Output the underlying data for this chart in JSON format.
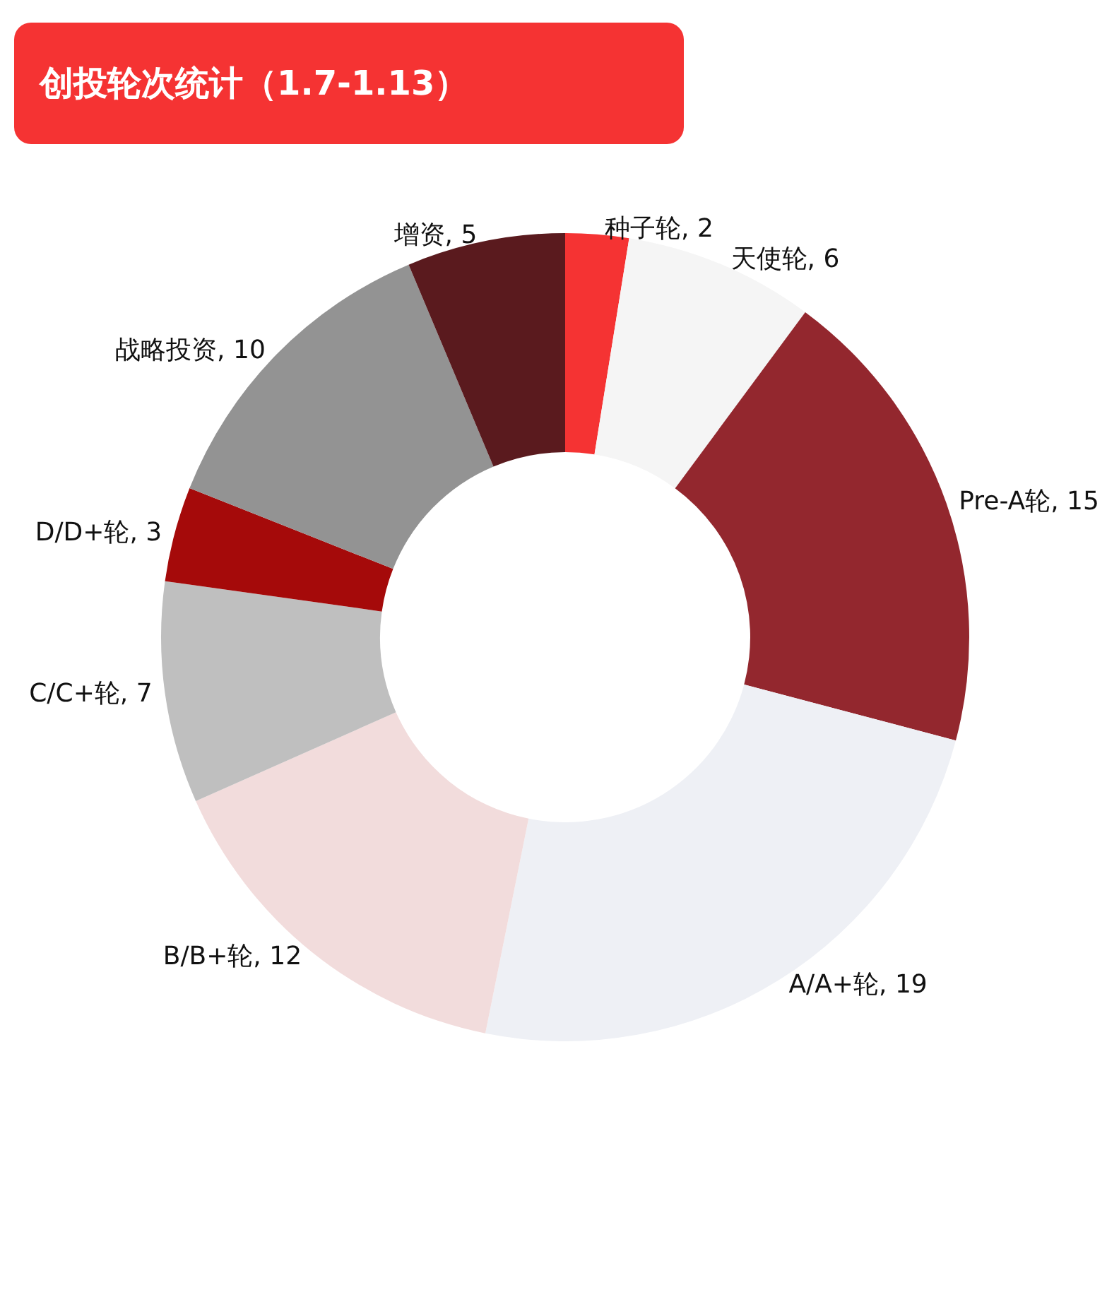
{
  "chart_data": {
    "type": "donut",
    "title": "创投轮次统计（1.7-1.13）",
    "categories": [
      "种子轮",
      "天使轮",
      "Pre-A轮",
      "A/A+轮",
      "B/B+轮",
      "C/C+轮",
      "D/D+轮",
      "战略投资",
      "增资"
    ],
    "values": [
      2,
      6,
      15,
      19,
      12,
      7,
      3,
      10,
      5
    ],
    "colors": [
      "#f53333",
      "#f5f5f5",
      "#93272e",
      "#eef0f5",
      "#f2dcdc",
      "#bfbfbf",
      "#a50a0a",
      "#939393",
      "#5a1a1e"
    ],
    "value_labels": [
      ", 2",
      ", 6",
      ", 15",
      ", 19",
      ", 12",
      ", 7",
      ", 3",
      ", 10",
      ", 5"
    ],
    "legend": false
  }
}
